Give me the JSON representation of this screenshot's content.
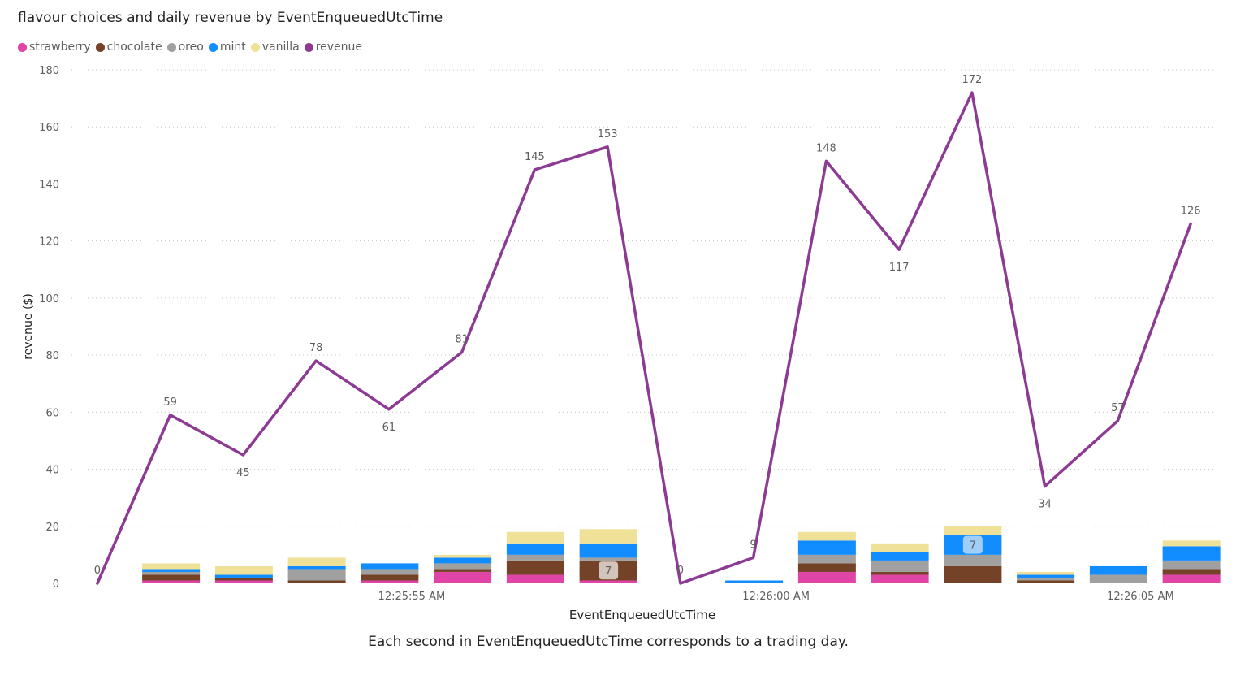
{
  "chart_data": {
    "type": "bar",
    "title": "flavour choices and daily revenue by EventEnqueuedUtcTime",
    "xlabel": "EventEnqueuedUtcTime",
    "ylabel": "revenue ($)",
    "caption": "Each second in EventEnqueuedUtcTime corresponds to a trading day.",
    "ylim": [
      0,
      180
    ],
    "yticks": [
      "0",
      "20",
      "40",
      "60",
      "80",
      "100",
      "120",
      "140",
      "160",
      "180"
    ],
    "xticks": [
      {
        "index": 4,
        "label": "12:25:55 AM"
      },
      {
        "index": 9,
        "label": "12:26:00 AM"
      },
      {
        "index": 14,
        "label": "12:26:05 AM"
      }
    ],
    "legend_position": "top-left",
    "grid": true,
    "series": [
      {
        "name": "strawberry",
        "color": "#e044a7",
        "kind": "bar",
        "values": [
          0,
          1,
          1,
          0,
          1,
          4,
          3,
          1,
          0,
          0,
          4,
          3,
          0,
          0,
          0,
          3
        ]
      },
      {
        "name": "chocolate",
        "color": "#744226",
        "kind": "bar",
        "values": [
          0,
          2,
          1,
          1,
          2,
          1,
          5,
          7,
          0,
          0,
          3,
          1,
          6,
          1,
          0,
          2
        ]
      },
      {
        "name": "oreo",
        "color": "#a0a0a0",
        "kind": "bar",
        "values": [
          0,
          1,
          0,
          4,
          2,
          2,
          2,
          1,
          0,
          0,
          3,
          4,
          4,
          1,
          3,
          3
        ]
      },
      {
        "name": "mint",
        "color": "#118dff",
        "kind": "bar",
        "values": [
          0,
          1,
          1,
          1,
          2,
          2,
          4,
          5,
          0,
          1,
          5,
          3,
          7,
          1,
          3,
          5
        ]
      },
      {
        "name": "vanilla",
        "color": "#f0e199",
        "kind": "bar",
        "values": [
          0,
          2,
          3,
          3,
          0,
          1,
          4,
          5,
          0,
          0,
          3,
          3,
          3,
          1,
          0,
          2
        ]
      },
      {
        "name": "revenue",
        "color": "#8c3a93",
        "kind": "line",
        "values": [
          0,
          59,
          45,
          78,
          61,
          81,
          145,
          153,
          0,
          9,
          148,
          117,
          172,
          34,
          57,
          126
        ]
      }
    ],
    "bar_annotations": [
      {
        "index": 7,
        "series": "chocolate",
        "label": "7"
      },
      {
        "index": 12,
        "series": "mint",
        "label": "7"
      }
    ]
  }
}
